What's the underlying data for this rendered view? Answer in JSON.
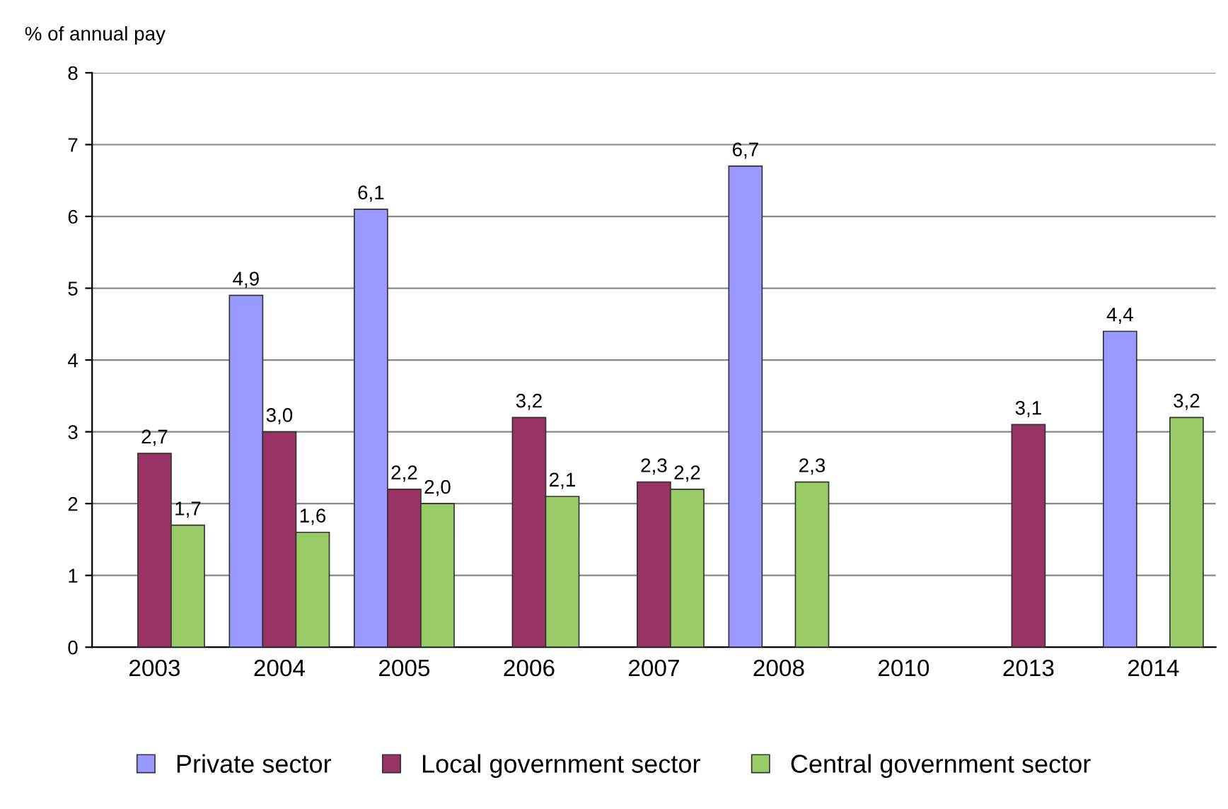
{
  "chart_data": {
    "type": "bar",
    "ylabel": "% of annual pay",
    "categories": [
      "2003",
      "2004",
      "2005",
      "2006",
      "2007",
      "2008",
      "2010",
      "2013",
      "2014"
    ],
    "series": [
      {
        "name": "Private sector",
        "color": "#9999ff",
        "values": [
          null,
          4.9,
          6.1,
          null,
          null,
          6.7,
          null,
          null,
          4.4
        ],
        "value_labels": [
          null,
          "4,9",
          "6,1",
          null,
          null,
          "6,7",
          null,
          null,
          "4,4"
        ]
      },
      {
        "name": "Local government sector",
        "color": "#993366",
        "values": [
          2.7,
          3.0,
          2.2,
          3.2,
          2.3,
          null,
          null,
          3.1,
          null
        ],
        "value_labels": [
          "2,7",
          "3,0",
          "2,2",
          "3,2",
          "2,3",
          null,
          null,
          "3,1",
          null
        ]
      },
      {
        "name": "Central government sector",
        "color": "#99cc66",
        "values": [
          1.7,
          1.6,
          2.0,
          2.1,
          2.2,
          2.3,
          null,
          null,
          3.2
        ],
        "value_labels": [
          "1,7",
          "1,6",
          "2,0",
          "2,1",
          "2,2",
          "2,3",
          null,
          null,
          "3,2"
        ]
      }
    ],
    "ylim": [
      0,
      8
    ],
    "yticks": [
      0,
      1,
      2,
      3,
      4,
      5,
      6,
      7,
      8
    ],
    "grid": "y",
    "legend": "bottom"
  }
}
